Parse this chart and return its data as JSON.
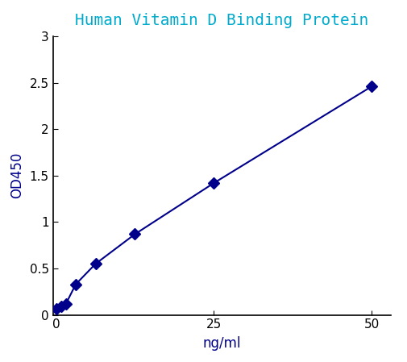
{
  "title": "Human Vitamin D Binding Protein",
  "xlabel": "ng/ml",
  "ylabel": "OD450",
  "x_data": [
    0,
    0.78,
    1.56,
    3.12,
    6.25,
    12.5,
    25,
    50
  ],
  "y_data": [
    0.07,
    0.09,
    0.12,
    0.33,
    0.55,
    0.87,
    1.42,
    2.46
  ],
  "xlim": [
    -0.5,
    53
  ],
  "ylim": [
    0,
    3
  ],
  "xticks": [
    0,
    25,
    50
  ],
  "yticks": [
    0,
    0.5,
    1,
    1.5,
    2,
    2.5,
    3
  ],
  "ytick_labels": [
    "0",
    "0.5",
    "1",
    "1.5",
    "2",
    "2.5",
    "3"
  ],
  "line_color": "#00008B",
  "marker_color": "#00008B",
  "title_color": "#00AACC",
  "tick_color": "#000000",
  "spine_color": "#000000",
  "xlabel_color": "#00008B",
  "ylabel_color": "#00008B",
  "title_fontsize": 14,
  "label_fontsize": 12,
  "tick_fontsize": 11,
  "marker": "D",
  "marker_size": 7,
  "line_width": 1.5
}
